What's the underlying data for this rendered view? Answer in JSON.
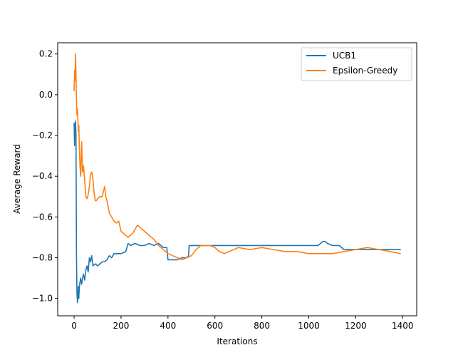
{
  "chart_data": {
    "type": "line",
    "title": "",
    "xlabel": "Iterations",
    "ylabel": "Average Reward",
    "xlim": [
      -70,
      1460
    ],
    "ylim": [
      -1.085,
      0.255
    ],
    "xticks": [
      0,
      200,
      400,
      600,
      800,
      1000,
      1200,
      1400
    ],
    "yticks": [
      -1.0,
      -0.8,
      -0.6,
      -0.4,
      -0.2,
      0.0,
      0.2
    ],
    "xtick_labels": [
      "0",
      "200",
      "400",
      "600",
      "800",
      "1000",
      "1200",
      "1400"
    ],
    "ytick_labels": [
      "−1.0",
      "−0.8",
      "−0.6",
      "−0.4",
      "−0.2",
      "0.0",
      "0.2"
    ],
    "grid": false,
    "legend_position": "upper right",
    "series": [
      {
        "name": "UCB1",
        "color": "#1f77b4",
        "x": [
          0,
          2,
          4,
          6,
          8,
          10,
          12,
          14,
          16,
          18,
          20,
          22,
          25,
          28,
          32,
          36,
          40,
          45,
          50,
          55,
          60,
          65,
          70,
          75,
          80,
          90,
          100,
          110,
          120,
          130,
          140,
          150,
          160,
          170,
          180,
          200,
          220,
          230,
          240,
          260,
          280,
          300,
          320,
          340,
          360,
          380,
          395,
          400,
          420,
          440,
          460,
          480,
          488,
          490,
          500,
          550,
          600,
          650,
          700,
          750,
          800,
          850,
          900,
          950,
          1000,
          1040,
          1050,
          1060,
          1070,
          1080,
          1100,
          1130,
          1150,
          1200,
          1250,
          1300,
          1350,
          1390
        ],
        "y": [
          -0.14,
          -0.25,
          -0.16,
          -0.13,
          -0.2,
          -0.78,
          -0.97,
          -1.02,
          -0.98,
          -0.94,
          -1.0,
          -0.95,
          -0.92,
          -0.9,
          -0.93,
          -0.9,
          -0.88,
          -0.91,
          -0.86,
          -0.84,
          -0.87,
          -0.8,
          -0.82,
          -0.79,
          -0.84,
          -0.83,
          -0.84,
          -0.83,
          -0.82,
          -0.82,
          -0.81,
          -0.79,
          -0.8,
          -0.78,
          -0.78,
          -0.78,
          -0.77,
          -0.73,
          -0.74,
          -0.73,
          -0.74,
          -0.74,
          -0.73,
          -0.74,
          -0.73,
          -0.75,
          -0.75,
          -0.81,
          -0.81,
          -0.81,
          -0.8,
          -0.8,
          -0.79,
          -0.74,
          -0.74,
          -0.74,
          -0.74,
          -0.74,
          -0.74,
          -0.74,
          -0.74,
          -0.74,
          -0.74,
          -0.74,
          -0.74,
          -0.74,
          -0.73,
          -0.72,
          -0.72,
          -0.73,
          -0.74,
          -0.74,
          -0.76,
          -0.76,
          -0.76,
          -0.76,
          -0.76,
          -0.76
        ]
      },
      {
        "name": "Epsilon-Greedy",
        "color": "#ff7f0e",
        "x": [
          0,
          2,
          4,
          6,
          8,
          10,
          12,
          14,
          16,
          18,
          20,
          22,
          25,
          28,
          32,
          36,
          40,
          45,
          50,
          55,
          60,
          65,
          70,
          75,
          80,
          85,
          90,
          95,
          100,
          110,
          120,
          130,
          135,
          140,
          150,
          160,
          170,
          180,
          190,
          200,
          210,
          220,
          230,
          250,
          270,
          280,
          300,
          320,
          340,
          360,
          380,
          400,
          420,
          440,
          460,
          480,
          500,
          520,
          540,
          560,
          580,
          600,
          620,
          640,
          660,
          700,
          750,
          800,
          850,
          900,
          950,
          1000,
          1050,
          1100,
          1150,
          1200,
          1250,
          1300,
          1350,
          1390
        ],
        "y": [
          0.02,
          0.12,
          0.07,
          0.2,
          0.1,
          -0.02,
          -0.1,
          -0.07,
          -0.12,
          -0.18,
          -0.15,
          -0.25,
          -0.35,
          -0.4,
          -0.23,
          -0.38,
          -0.35,
          -0.42,
          -0.5,
          -0.51,
          -0.49,
          -0.45,
          -0.39,
          -0.38,
          -0.41,
          -0.48,
          -0.52,
          -0.52,
          -0.51,
          -0.5,
          -0.5,
          -0.45,
          -0.5,
          -0.52,
          -0.58,
          -0.6,
          -0.62,
          -0.63,
          -0.62,
          -0.67,
          -0.68,
          -0.69,
          -0.7,
          -0.68,
          -0.64,
          -0.65,
          -0.67,
          -0.69,
          -0.71,
          -0.74,
          -0.76,
          -0.78,
          -0.79,
          -0.8,
          -0.81,
          -0.8,
          -0.79,
          -0.76,
          -0.74,
          -0.74,
          -0.74,
          -0.75,
          -0.77,
          -0.78,
          -0.77,
          -0.75,
          -0.76,
          -0.75,
          -0.76,
          -0.77,
          -0.77,
          -0.78,
          -0.78,
          -0.78,
          -0.77,
          -0.76,
          -0.75,
          -0.76,
          -0.77,
          -0.78
        ]
      }
    ]
  }
}
